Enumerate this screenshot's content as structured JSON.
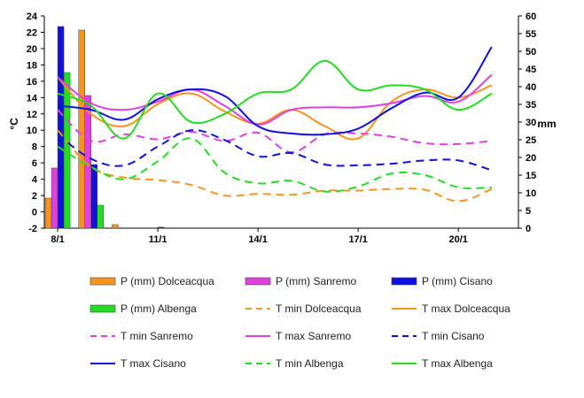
{
  "chart_data": {
    "type": "bar+line",
    "title": "",
    "ylabel_left": "°C",
    "ylabel_right": "mm",
    "ylim_left": [
      -2,
      24
    ],
    "ylim_right": [
      0,
      60
    ],
    "yticks_left": [
      "-2",
      "0",
      "2",
      "4",
      "6",
      "8",
      "10",
      "12",
      "14",
      "16",
      "18",
      "20",
      "22",
      "24"
    ],
    "yticks_right": [
      "0",
      "5",
      "10",
      "15",
      "20",
      "25",
      "30",
      "35",
      "40",
      "45",
      "50",
      "55",
      "60"
    ],
    "x_range": [
      7.6,
      21.8
    ],
    "x_ticks": [
      {
        "x": 8,
        "label": "8/1"
      },
      {
        "x": 11,
        "label": "11/1"
      },
      {
        "x": 14,
        "label": "14/1"
      },
      {
        "x": 17,
        "label": "17/1"
      },
      {
        "x": 20,
        "label": "20/1"
      }
    ],
    "days": [
      8,
      9,
      10,
      11,
      12,
      13,
      14,
      15,
      16,
      17,
      18,
      19,
      20,
      21
    ],
    "bar_series": [
      {
        "name": "P (mm) Dolceacqua",
        "color": "#F7941D",
        "axis": "right",
        "values": [
          8.5,
          56.0,
          1.0,
          0,
          0,
          0,
          0,
          0,
          0,
          0,
          0,
          0,
          0,
          0
        ]
      },
      {
        "name": "P (mm) Sanremo",
        "color": "#E040E0",
        "axis": "right",
        "values": [
          17.0,
          37.5,
          0,
          0,
          0,
          0,
          0,
          0,
          0,
          0,
          0,
          0,
          0,
          0
        ]
      },
      {
        "name": "P (mm) Cisano",
        "color": "#1010E0",
        "axis": "right",
        "values": [
          57.0,
          18.0,
          0,
          0.3,
          0,
          0,
          0,
          0,
          0,
          0,
          0,
          0,
          0,
          0
        ]
      },
      {
        "name": "P (mm) Albenga",
        "color": "#22DD22",
        "axis": "right",
        "values": [
          44.0,
          6.5,
          0,
          0,
          0,
          0,
          0,
          0,
          0,
          0,
          0,
          0,
          0,
          0
        ]
      }
    ],
    "line_series": [
      {
        "name": "T min Dolceacqua",
        "color": "#F7941D",
        "dash": true,
        "values": [
          10.0,
          5.5,
          4.2,
          3.9,
          3.3,
          2.0,
          2.2,
          2.1,
          2.6,
          2.6,
          2.8,
          2.7,
          1.3,
          2.8
        ]
      },
      {
        "name": "T max Dolceacqua",
        "color": "#F7941D",
        "dash": false,
        "values": [
          16.5,
          12.0,
          10.5,
          13.2,
          14.5,
          12.3,
          10.8,
          12.5,
          10.5,
          9.0,
          13.5,
          15.0,
          14.0,
          15.5
        ]
      },
      {
        "name": "T min Sanremo",
        "color": "#E040E0",
        "dash": true,
        "values": [
          12.5,
          8.7,
          9.5,
          8.9,
          9.8,
          8.7,
          9.7,
          7.3,
          9.5,
          9.6,
          9.2,
          8.4,
          8.3,
          8.7
        ]
      },
      {
        "name": "T max Sanremo",
        "color": "#E040E0",
        "dash": false,
        "values": [
          16.5,
          13.3,
          12.5,
          13.5,
          15.0,
          13.0,
          10.7,
          12.5,
          12.8,
          12.8,
          13.3,
          14.2,
          13.5,
          16.8
        ]
      },
      {
        "name": "T min Cisano",
        "color": "#1010E0",
        "dash": true,
        "values": [
          9.5,
          6.5,
          5.7,
          8.0,
          10.0,
          8.8,
          6.8,
          7.2,
          5.8,
          5.7,
          5.9,
          6.3,
          6.3,
          5.1
        ]
      },
      {
        "name": "T max Cisano",
        "color": "#1010E0",
        "dash": false,
        "values": [
          13.0,
          12.5,
          11.3,
          13.8,
          15.0,
          14.2,
          10.5,
          9.6,
          9.5,
          10.2,
          12.7,
          14.6,
          14.0,
          20.2
        ]
      },
      {
        "name": "T min Albenga",
        "color": "#22DD22",
        "dash": true,
        "values": [
          8.0,
          5.5,
          4.0,
          6.2,
          9.0,
          4.8,
          3.5,
          3.8,
          2.5,
          3.1,
          4.7,
          4.5,
          3.0,
          3.0
        ]
      },
      {
        "name": "T max Albenga",
        "color": "#22DD22",
        "dash": false,
        "values": [
          14.5,
          13.0,
          9.0,
          14.5,
          11.0,
          12.0,
          14.5,
          15.0,
          18.5,
          15.0,
          15.5,
          15.0,
          12.5,
          14.5
        ]
      }
    ],
    "legend": {
      "placement": "bottom",
      "columns": 3
    }
  }
}
